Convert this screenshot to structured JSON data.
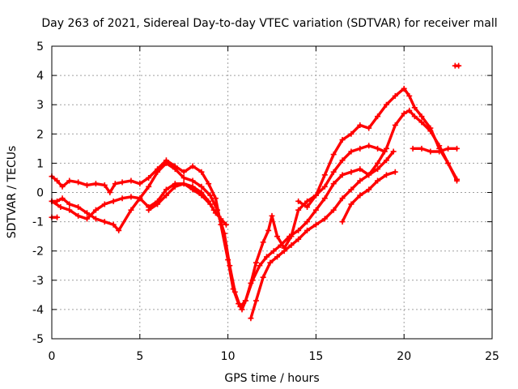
{
  "chart_data": {
    "type": "line",
    "title": "Day 263 of 2021, Sidereal Day-to-day VTEC variation (SDTVAR) for receiver mall",
    "xlabel": "GPS time / hours",
    "ylabel": "SDTVAR / TECUs",
    "xlim": [
      0,
      25
    ],
    "ylim": [
      -5,
      5
    ],
    "xticks": [
      0,
      5,
      10,
      15,
      20,
      25
    ],
    "yticks": [
      -5,
      -4,
      -3,
      -2,
      -1,
      0,
      1,
      2,
      3,
      4,
      5
    ],
    "grid": true,
    "marker": "plus",
    "color": "#ff0000",
    "series": [
      {
        "x": [
          0.0,
          0.3,
          0.6,
          1.0,
          1.5,
          2.0,
          2.5,
          3.0,
          3.3,
          3.6,
          4.0,
          4.5,
          5.0,
          5.5,
          6.0,
          6.5,
          7.0,
          7.5,
          8.0,
          8.5,
          8.9,
          9.3,
          9.6,
          10.0,
          10.3,
          10.6,
          10.8,
          11.0,
          11.3,
          11.6,
          12.0,
          12.3,
          12.5,
          12.8,
          13.2,
          13.6,
          14.0,
          14.5,
          15.0,
          15.5,
          16.0,
          16.5,
          17.0,
          17.5,
          18.0,
          18.5,
          19.0,
          19.5,
          20.0,
          20.3,
          20.6,
          21.0,
          21.5,
          22.0,
          22.5,
          23.0
        ],
        "y": [
          0.55,
          0.4,
          0.2,
          0.4,
          0.35,
          0.25,
          0.3,
          0.25,
          0.0,
          0.3,
          0.35,
          0.4,
          0.3,
          0.5,
          0.8,
          1.1,
          0.9,
          0.7,
          0.9,
          0.7,
          0.3,
          -0.2,
          -1.1,
          -2.3,
          -3.3,
          -3.8,
          -4.0,
          -3.7,
          -3.1,
          -2.4,
          -1.7,
          -1.3,
          -0.8,
          -1.5,
          -1.9,
          -1.5,
          -0.6,
          -0.3,
          -0.1,
          0.6,
          1.3,
          1.8,
          2.0,
          2.3,
          2.2,
          2.6,
          3.0,
          3.3,
          3.55,
          3.3,
          2.9,
          2.6,
          2.2,
          1.5,
          1.0,
          0.45
        ]
      },
      {
        "x": [
          0.0,
          0.3,
          0.6,
          1.0,
          1.5,
          2.0,
          2.5,
          3.0,
          3.5,
          3.8,
          4.5,
          5.0,
          5.5,
          6.0,
          6.5,
          7.0,
          7.5,
          8.0,
          8.5,
          9.0,
          9.4,
          9.8,
          10.1,
          10.4,
          10.7,
          11.0,
          11.4,
          11.8,
          12.2,
          12.6,
          13.0,
          13.5,
          14.0,
          14.5,
          15.0,
          15.5,
          16.0,
          16.5,
          17.0,
          17.5,
          18.0,
          18.5,
          19.0,
          19.5,
          20.0,
          20.3,
          20.6,
          21.0,
          21.5,
          22.0,
          22.5,
          23.0
        ],
        "y": [
          -0.3,
          -0.3,
          -0.2,
          -0.4,
          -0.5,
          -0.7,
          -0.9,
          -1.0,
          -1.1,
          -1.3,
          -0.6,
          -0.2,
          0.2,
          0.7,
          1.0,
          0.8,
          0.5,
          0.4,
          0.2,
          -0.1,
          -0.6,
          -1.4,
          -2.5,
          -3.4,
          -3.9,
          -3.7,
          -3.0,
          -2.5,
          -2.2,
          -2.0,
          -1.8,
          -1.5,
          -1.3,
          -1.0,
          -0.6,
          -0.2,
          0.3,
          0.6,
          0.7,
          0.8,
          0.6,
          1.0,
          1.5,
          2.3,
          2.7,
          2.8,
          2.6,
          2.4,
          2.1,
          1.6,
          1.0,
          0.4
        ]
      },
      {
        "x": [
          0.0,
          0.5,
          1.0,
          1.5,
          2.0,
          2.5,
          3.0,
          3.5,
          4.0,
          4.5,
          5.0,
          5.5,
          6.0,
          6.5,
          7.0,
          7.5,
          8.0,
          8.5,
          9.0,
          9.3,
          9.6,
          9.9
        ],
        "y": [
          -0.3,
          -0.5,
          -0.6,
          -0.8,
          -0.9,
          -0.6,
          -0.4,
          -0.3,
          -0.2,
          -0.15,
          -0.2,
          -0.5,
          -0.3,
          0.1,
          0.3,
          0.3,
          0.1,
          -0.1,
          -0.4,
          -0.7,
          -0.9,
          -1.1
        ]
      },
      {
        "x": [
          5.5,
          6.0,
          6.5,
          7.0,
          7.5,
          8.0,
          8.5,
          8.9,
          9.2
        ],
        "y": [
          -0.6,
          -0.4,
          -0.1,
          0.2,
          0.3,
          0.2,
          0.0,
          -0.3,
          -0.6
        ]
      },
      {
        "x": [
          11.3,
          11.6,
          12.0,
          12.4,
          12.8,
          13.2,
          13.6,
          14.0,
          14.5,
          15.0,
          15.5,
          16.0,
          16.5,
          17.0,
          17.5,
          18.0,
          18.5,
          19.0,
          19.4
        ],
        "y": [
          -4.3,
          -3.7,
          -2.9,
          -2.4,
          -2.2,
          -2.0,
          -1.8,
          -1.6,
          -1.3,
          -1.1,
          -0.9,
          -0.6,
          -0.2,
          0.1,
          0.4,
          0.6,
          0.8,
          1.1,
          1.4
        ]
      },
      {
        "x": [
          14.0,
          14.5,
          15.0,
          15.5,
          16.0,
          16.5,
          17.0,
          17.5,
          18.0,
          18.5,
          18.9
        ],
        "y": [
          -0.3,
          -0.5,
          -0.1,
          0.2,
          0.7,
          1.1,
          1.4,
          1.5,
          1.6,
          1.5,
          1.4
        ]
      },
      {
        "x": [
          16.5,
          17.0,
          17.5,
          18.0,
          18.5,
          19.0,
          19.5
        ],
        "y": [
          -1.0,
          -0.4,
          -0.1,
          0.1,
          0.4,
          0.6,
          0.7
        ]
      },
      {
        "x": [
          20.5,
          21.0,
          21.5,
          22.0,
          22.5,
          23.0
        ],
        "y": [
          1.5,
          1.5,
          1.4,
          1.4,
          1.5,
          1.5
        ]
      },
      {
        "x": [
          0.0,
          0.3
        ],
        "y": [
          -0.85,
          -0.85
        ]
      },
      {
        "x": [
          22.9,
          23.1
        ],
        "y": [
          4.33,
          4.33
        ]
      }
    ]
  }
}
